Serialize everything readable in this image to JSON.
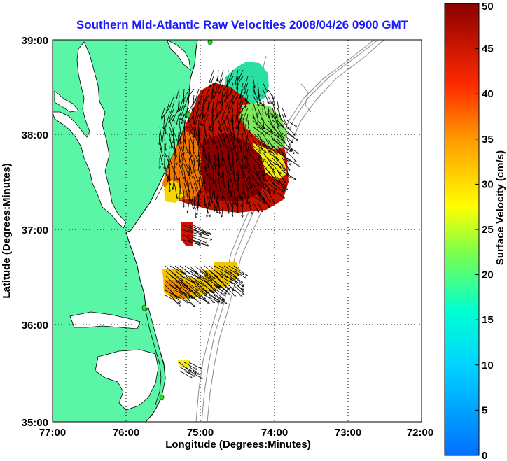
{
  "title": "Southern Mid-Atlantic Raw Velocities 2008/04/26 0900 GMT",
  "xlabel": "Longitude (Degrees:Minutes)",
  "ylabel": "Latitude (Degrees:Minutes)",
  "xticks": [
    "77:00",
    "76:00",
    "75:00",
    "74:00",
    "73:00",
    "72:00"
  ],
  "yticks": [
    "39:00",
    "38:00",
    "37:00",
    "36:00",
    "35:00"
  ],
  "colorbar": {
    "label": "Surface Velocity (cm/s)",
    "ticks": [
      "0",
      "5",
      "10",
      "15",
      "20",
      "25",
      "30",
      "35",
      "40",
      "45",
      "50"
    ],
    "min": 0,
    "max": 50
  },
  "colors": {
    "land": "#5af5a6",
    "coast": "#000000",
    "bathymetry": "#8c8c8c",
    "grid": "#000000",
    "title": "#1a1aff",
    "station": "#22dd22"
  },
  "chart_data": {
    "type": "heatmap",
    "xlim": [
      -77,
      -72
    ],
    "ylim": [
      35,
      39
    ],
    "grid": true,
    "vector_field": "black arrows over color-coded speed"
  }
}
